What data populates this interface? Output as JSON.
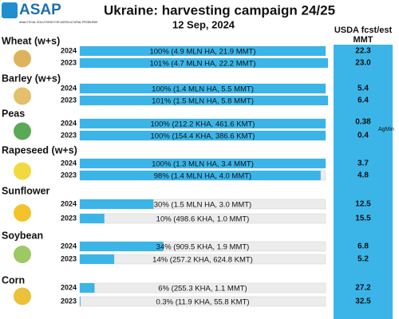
{
  "chart_data": {
    "type": "bar",
    "title": "Ukraine: harvesting campaign 24/25",
    "subtitle": "12 Sep, 2024",
    "logo": {
      "name": "ASAP",
      "tagline": "ANALYTICAL SOLUTIONS FOR AGRICULTURAL PROBLEMS"
    },
    "usda_header": [
      "USDA fcst/est",
      "MMT"
    ],
    "usda_note": "AgMin",
    "xlim": [
      0,
      100
    ],
    "color": "#3bb5e8",
    "crops": [
      {
        "name": "Wheat (w+s)",
        "rows": [
          {
            "year": "2024",
            "value": 100,
            "value_label": "100% (4.9 MLN HA, 21.9 MMT)",
            "usda": "22.3"
          },
          {
            "year": "2023",
            "value": 101,
            "value_label": "101% (4.7 MLN HA, 22.2 MMT)",
            "usda": "23.0"
          }
        ]
      },
      {
        "name": "Barley (w+s)",
        "rows": [
          {
            "year": "2024",
            "value": 100,
            "value_label": "100% (1.4 MLN HA, 5.5 MMT)",
            "usda": "5.4"
          },
          {
            "year": "2023",
            "value": 101,
            "value_label": "101% (1.5 MLN HA, 5.8 MMT)",
            "usda": "6.4"
          }
        ]
      },
      {
        "name": "Peas",
        "rows": [
          {
            "year": "2024",
            "value": 100,
            "value_label": "100% (212.2 KHA, 461.6 KMT)",
            "usda": "0.38"
          },
          {
            "year": "2023",
            "value": 100,
            "value_label": "100% (154.4 KHA, 386.6 KMT)",
            "usda": "0.4"
          }
        ]
      },
      {
        "name": "Rapeseed (w+s)",
        "rows": [
          {
            "year": "2024",
            "value": 100,
            "value_label": "100% (1.3 MLN HA, 3.4 MMT)",
            "usda": "3.7"
          },
          {
            "year": "2023",
            "value": 98,
            "value_label": "98% (1.4 MLN HA, 4.0 MMT)",
            "usda": "4.8"
          }
        ]
      },
      {
        "name": "Sunflower",
        "rows": [
          {
            "year": "2024",
            "value": 30,
            "value_label": "30% (1.5 MLN HA, 3.0 MMT)",
            "usda": "12.5"
          },
          {
            "year": "2023",
            "value": 10,
            "value_label": "10% (498.6 KHA, 1.0 MMT)",
            "usda": "15.5"
          }
        ]
      },
      {
        "name": "Soybean",
        "rows": [
          {
            "year": "2024",
            "value": 34,
            "value_label": "34% (909.5 KHA, 1.9 MMT)",
            "usda": "6.8"
          },
          {
            "year": "2023",
            "value": 14,
            "value_label": "14% (257.2 KHA, 624.8 KMT)",
            "usda": "5.2"
          }
        ]
      },
      {
        "name": "Corn",
        "rows": [
          {
            "year": "2024",
            "value": 6,
            "value_label": "6% (255.3 KHA, 1.1 MMT)",
            "usda": "27.2"
          },
          {
            "year": "2023",
            "value": 0.3,
            "value_label": "0.3% (11.9 KHA, 55.8 KMT)",
            "usda": "32.5"
          }
        ]
      }
    ]
  }
}
